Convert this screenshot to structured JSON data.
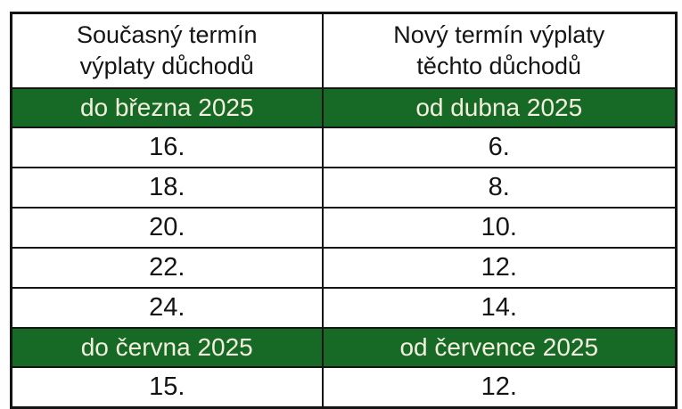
{
  "table": {
    "title": "pension-payment-schedule",
    "columns": [
      {
        "header": "Současný termín\nvýplaty důchodů"
      },
      {
        "header": "Nový termín výplaty\ntěchto důchodů"
      }
    ],
    "sections": [
      {
        "period": [
          "do března 2025",
          "od dubna 2025"
        ],
        "rows": [
          [
            "16.",
            "6."
          ],
          [
            "18.",
            "8."
          ],
          [
            "20.",
            "10."
          ],
          [
            "22.",
            "12."
          ],
          [
            "24.",
            "14."
          ]
        ]
      },
      {
        "period": [
          "do června 2025",
          "od července 2025"
        ],
        "rows": [
          [
            "15.",
            "12."
          ]
        ]
      }
    ]
  },
  "colors": {
    "band_green": "#176a25",
    "band_text": "#f2efde",
    "border": "#141414",
    "text": "#141414"
  }
}
